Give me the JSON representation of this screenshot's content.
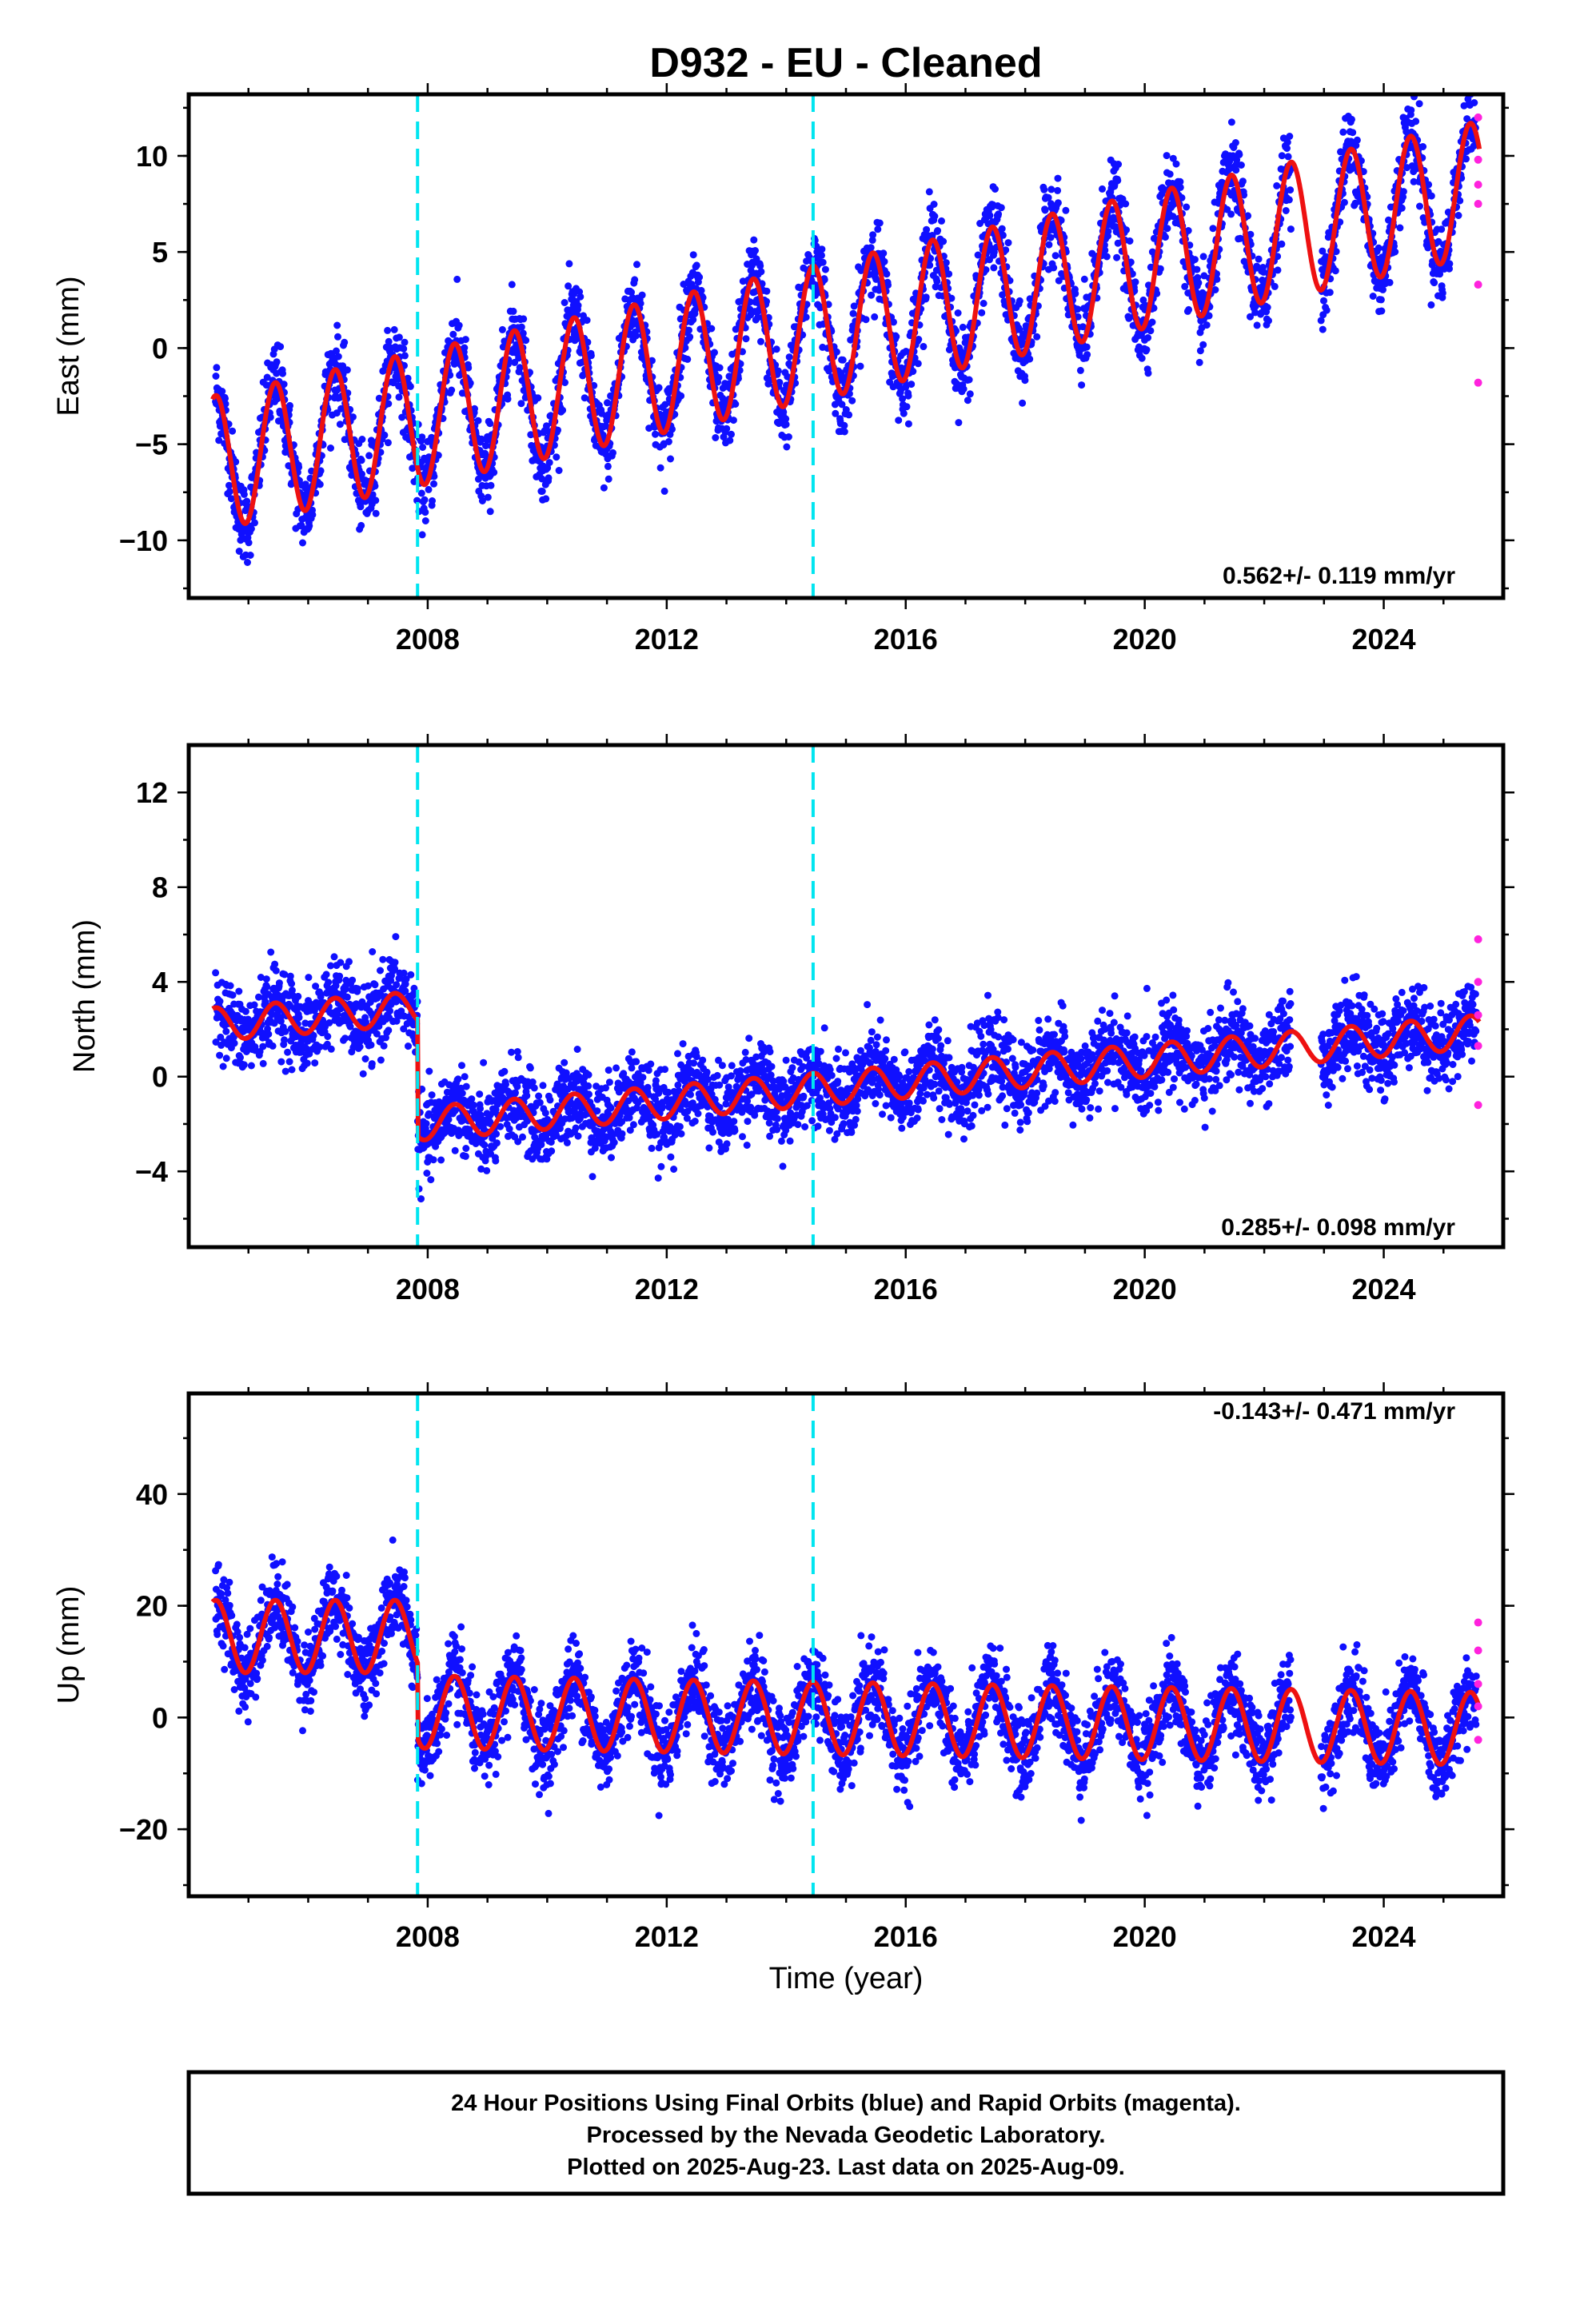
{
  "title": "D932  - EU - Cleaned",
  "colors": {
    "final": "#1010ff",
    "rapid": "#ff22dd",
    "model": "#ee1111",
    "break": "#00e5f0"
  },
  "chart_data": [
    {
      "type": "scatter",
      "panel": "east",
      "ylabel": "East (mm)",
      "xlabel": "",
      "xlim": [
        2004.0,
        2026.0
      ],
      "ylim": [
        -13,
        13.2
      ],
      "xticks": [
        2008,
        2012,
        2016,
        2020,
        2024
      ],
      "yticks": [
        -10,
        -5,
        0,
        5,
        10
      ],
      "rate_label": "0.562+/- 0.119 mm/yr",
      "breaks": [
        2007.83,
        2014.45
      ],
      "trend": {
        "start": 2004.4,
        "end": 2025.6,
        "values": [
          -6.0,
          8.3
        ],
        "annual_amplitude": 3.5
      },
      "rapid_points": {
        "x": 2025.58,
        "values": [
          12.0,
          9.8,
          8.5,
          7.5,
          3.3,
          -1.8
        ]
      }
    },
    {
      "type": "scatter",
      "panel": "north",
      "ylabel": "North (mm)",
      "xlabel": "",
      "xlim": [
        2004.0,
        2026.0
      ],
      "ylim": [
        -7.2,
        14
      ],
      "xticks": [
        2008,
        2012,
        2016,
        2020,
        2024
      ],
      "yticks": [
        -4,
        0,
        4,
        8,
        12
      ],
      "rate_label": "0.285+/- 0.098 mm/yr",
      "breaks": [
        2007.83,
        2014.45
      ],
      "trend": {
        "pre_break": [
          2.2,
          2.9
        ],
        "post_break": [
          -2.0,
          1.9
        ],
        "annual_amplitude": 0.7
      },
      "rapid_points": {
        "x": 2025.58,
        "values": [
          5.8,
          4.0,
          2.6,
          1.3,
          -1.2
        ]
      }
    },
    {
      "type": "scatter",
      "panel": "up",
      "ylabel": "Up (mm)",
      "xlabel": "Time (year)",
      "xlim": [
        2004.0,
        2026.0
      ],
      "ylim": [
        -32,
        58
      ],
      "xticks": [
        2008,
        2012,
        2016,
        2020,
        2024
      ],
      "yticks": [
        -20,
        0,
        20,
        40
      ],
      "rate_label": "-0.143+/- 0.471 mm/yr",
      "breaks": [
        2007.83,
        2014.45
      ],
      "trend": {
        "pre_break": [
          14.5,
          14.5
        ],
        "post_break": [
          1.0,
          -2.0
        ],
        "annual_amplitude": 6.5
      },
      "rapid_points": {
        "x": 2025.58,
        "values": [
          17.0,
          12.0,
          6.0,
          2.0,
          -4.0
        ]
      }
    }
  ],
  "footer": {
    "line1": "24 Hour Positions Using Final Orbits (blue) and Rapid Orbits (magenta).",
    "line2": "Processed by the Nevada Geodetic Laboratory.",
    "line3": "Plotted on 2025-Aug-23. Last data on 2025-Aug-09."
  }
}
